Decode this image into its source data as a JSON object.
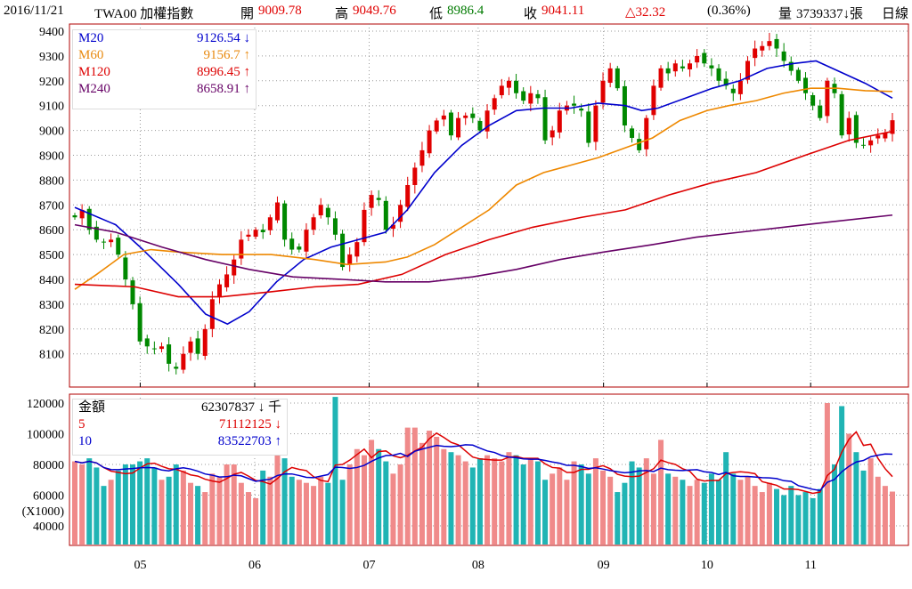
{
  "header": {
    "date": "2016/11/21",
    "symbol": "TWA00 加權指數",
    "open_label": "開",
    "open": "9009.78",
    "high_label": "高",
    "high": "9049.76",
    "low_label": "低",
    "low": "8986.4",
    "close_label": "收",
    "close": "9041.11",
    "change": "△32.32",
    "change_pct": "(0.36%)",
    "volume_label": "量",
    "volume": "3739337↓張",
    "period": "日線"
  },
  "price_legend": [
    {
      "name": "M20",
      "value": "9126.54 ↓",
      "color": "#0000cc"
    },
    {
      "name": "M60",
      "value": "9156.7 ↑",
      "color": "#e88a10"
    },
    {
      "name": "M120",
      "value": "8996.45 ↑",
      "color": "#dd0000"
    },
    {
      "name": "M240",
      "value": "8658.91 ↑",
      "color": "#660066"
    }
  ],
  "volume_legend": [
    {
      "name": "金額",
      "value": "62307837 ↓ 千",
      "color": "#000000"
    },
    {
      "name": "5",
      "value": "71112125 ↓",
      "color": "#dd0000"
    },
    {
      "name": "10",
      "value": "83522703 ↑",
      "color": "#0000cc"
    }
  ],
  "chart_data": {
    "type": "candlestick",
    "price_ticks": [
      8100,
      8200,
      8300,
      8400,
      8500,
      8600,
      8700,
      8800,
      8900,
      9000,
      9100,
      9200,
      9300,
      9400
    ],
    "volume_ticks": [
      40000,
      60000,
      80000,
      100000,
      120000
    ],
    "volume_unit": "(X1000)",
    "months": [
      {
        "label": "05",
        "day": 12
      },
      {
        "label": "06",
        "day": 33
      },
      {
        "label": "07",
        "day": 54
      },
      {
        "label": "08",
        "day": 74
      },
      {
        "label": "09",
        "day": 97
      },
      {
        "label": "10",
        "day": 116
      },
      {
        "label": "11",
        "day": 135
      }
    ],
    "total_days": 150,
    "closes": [
      8650,
      8680,
      8600,
      8560,
      8550,
      8560,
      8500,
      8400,
      8300,
      8150,
      8130,
      8120,
      8130,
      8060,
      8040,
      8100,
      8150,
      8100,
      8200,
      8320,
      8380,
      8420,
      8480,
      8560,
      8580,
      8600,
      8590,
      8650,
      8710,
      8560,
      8520,
      8520,
      8600,
      8650,
      8700,
      8650,
      8580,
      8450,
      8500,
      8550,
      8680,
      8740,
      8720,
      8600,
      8620,
      8700,
      8780,
      8850,
      8920,
      9000,
      9040,
      9060,
      8980,
      9050,
      9060,
      9050,
      9000,
      9080,
      9130,
      9180,
      9200,
      9150,
      9120,
      9150,
      9130,
      8960,
      9000,
      9080,
      9100,
      9100,
      9080,
      8950,
      9100,
      9200,
      9250,
      9170,
      9020,
      8970,
      8920,
      9050,
      9180,
      9250,
      9230,
      9270,
      9250,
      9270,
      9300,
      9270,
      9250,
      9200,
      9180,
      9150,
      9200,
      9280,
      9330,
      9340,
      9360,
      9330,
      9280,
      9240,
      9200,
      9150,
      9100,
      9050,
      9200,
      9150,
      8980,
      9050,
      8950,
      8940,
      8960,
      8980,
      8990,
      9041.11
    ],
    "volumes": [
      82000,
      80000,
      84000,
      78000,
      66000,
      70000,
      76000,
      80000,
      80000,
      82000,
      84000,
      78000,
      70000,
      72000,
      80000,
      76000,
      68000,
      66000,
      62000,
      74000,
      72000,
      80000,
      80000,
      68000,
      62000,
      58000,
      76000,
      72000,
      86000,
      84000,
      72000,
      70000,
      68000,
      66000,
      72000,
      68000,
      124000,
      70000,
      80000,
      90000,
      86000,
      96000,
      90000,
      82000,
      74000,
      80000,
      104000,
      104000,
      94000,
      102000,
      98000,
      90000,
      88000,
      86000,
      82000,
      78000,
      84000,
      86000,
      84000,
      82000,
      88000,
      86000,
      80000,
      84000,
      82000,
      70000,
      74000,
      78000,
      70000,
      82000,
      80000,
      74000,
      84000,
      76000,
      72000,
      62000,
      68000,
      82000,
      78000,
      84000,
      74000,
      96000,
      74000,
      72000,
      70000,
      66000,
      70000,
      68000,
      74000,
      70000,
      88000,
      74000,
      70000,
      72000,
      66000,
      62000,
      68000,
      64000,
      60000,
      66000,
      60000,
      62000,
      58000,
      64000,
      120000,
      80000,
      118000,
      100000,
      88000,
      76000,
      84000,
      72000,
      66000,
      62308
    ],
    "ma_series": [
      {
        "name": "M20",
        "color": "#0000cc",
        "points": [
          [
            0,
            8690
          ],
          [
            7.5,
            8620
          ],
          [
            12,
            8530
          ],
          [
            19,
            8380
          ],
          [
            24,
            8260
          ],
          [
            28,
            8220
          ],
          [
            32,
            8270
          ],
          [
            37,
            8390
          ],
          [
            42,
            8480
          ],
          [
            47,
            8530
          ],
          [
            52,
            8560
          ],
          [
            57,
            8590
          ],
          [
            61,
            8680
          ],
          [
            66,
            8830
          ],
          [
            71,
            8940
          ],
          [
            76,
            9020
          ],
          [
            81,
            9080
          ],
          [
            86,
            9090
          ],
          [
            91,
            9090
          ],
          [
            96,
            9110
          ],
          [
            101,
            9100
          ],
          [
            104,
            9080
          ],
          [
            107,
            9090
          ],
          [
            112,
            9130
          ],
          [
            117,
            9170
          ],
          [
            122,
            9200
          ],
          [
            127,
            9250
          ],
          [
            132,
            9270
          ],
          [
            136,
            9280
          ],
          [
            140,
            9240
          ],
          [
            145,
            9190
          ],
          [
            150,
            9130
          ]
        ]
      },
      {
        "name": "M60",
        "color": "#ee8800",
        "points": [
          [
            0,
            8360
          ],
          [
            4,
            8420
          ],
          [
            9,
            8500
          ],
          [
            14,
            8520
          ],
          [
            19,
            8510
          ],
          [
            27,
            8500
          ],
          [
            36,
            8500
          ],
          [
            44,
            8480
          ],
          [
            50,
            8460
          ],
          [
            57,
            8470
          ],
          [
            61,
            8490
          ],
          [
            66,
            8540
          ],
          [
            71,
            8610
          ],
          [
            76,
            8680
          ],
          [
            81,
            8780
          ],
          [
            86,
            8830
          ],
          [
            91,
            8860
          ],
          [
            96,
            8890
          ],
          [
            101,
            8930
          ],
          [
            106,
            8970
          ],
          [
            111,
            9040
          ],
          [
            116,
            9080
          ],
          [
            120,
            9100
          ],
          [
            125,
            9120
          ],
          [
            130,
            9150
          ],
          [
            135,
            9170
          ],
          [
            140,
            9170
          ],
          [
            145,
            9160
          ],
          [
            150,
            9157
          ]
        ]
      },
      {
        "name": "M120",
        "color": "#dd0000",
        "points": [
          [
            0,
            8380
          ],
          [
            11,
            8370
          ],
          [
            19,
            8330
          ],
          [
            27,
            8330
          ],
          [
            36,
            8350
          ],
          [
            44,
            8370
          ],
          [
            52,
            8380
          ],
          [
            60,
            8420
          ],
          [
            68,
            8500
          ],
          [
            76,
            8560
          ],
          [
            84,
            8610
          ],
          [
            93,
            8650
          ],
          [
            101,
            8680
          ],
          [
            109,
            8740
          ],
          [
            117,
            8790
          ],
          [
            125,
            8830
          ],
          [
            134,
            8900
          ],
          [
            142,
            8960
          ],
          [
            150,
            8996
          ]
        ]
      },
      {
        "name": "M240",
        "color": "#660066",
        "points": [
          [
            0,
            8620
          ],
          [
            7.5,
            8590
          ],
          [
            16,
            8530
          ],
          [
            24,
            8480
          ],
          [
            32,
            8440
          ],
          [
            40,
            8410
          ],
          [
            49,
            8400
          ],
          [
            57,
            8390
          ],
          [
            65,
            8390
          ],
          [
            73,
            8410
          ],
          [
            81,
            8440
          ],
          [
            89,
            8480
          ],
          [
            97,
            8510
          ],
          [
            106,
            8540
          ],
          [
            114,
            8570
          ],
          [
            122,
            8590
          ],
          [
            130,
            8610
          ],
          [
            138,
            8630
          ],
          [
            150,
            8659
          ]
        ]
      }
    ]
  }
}
